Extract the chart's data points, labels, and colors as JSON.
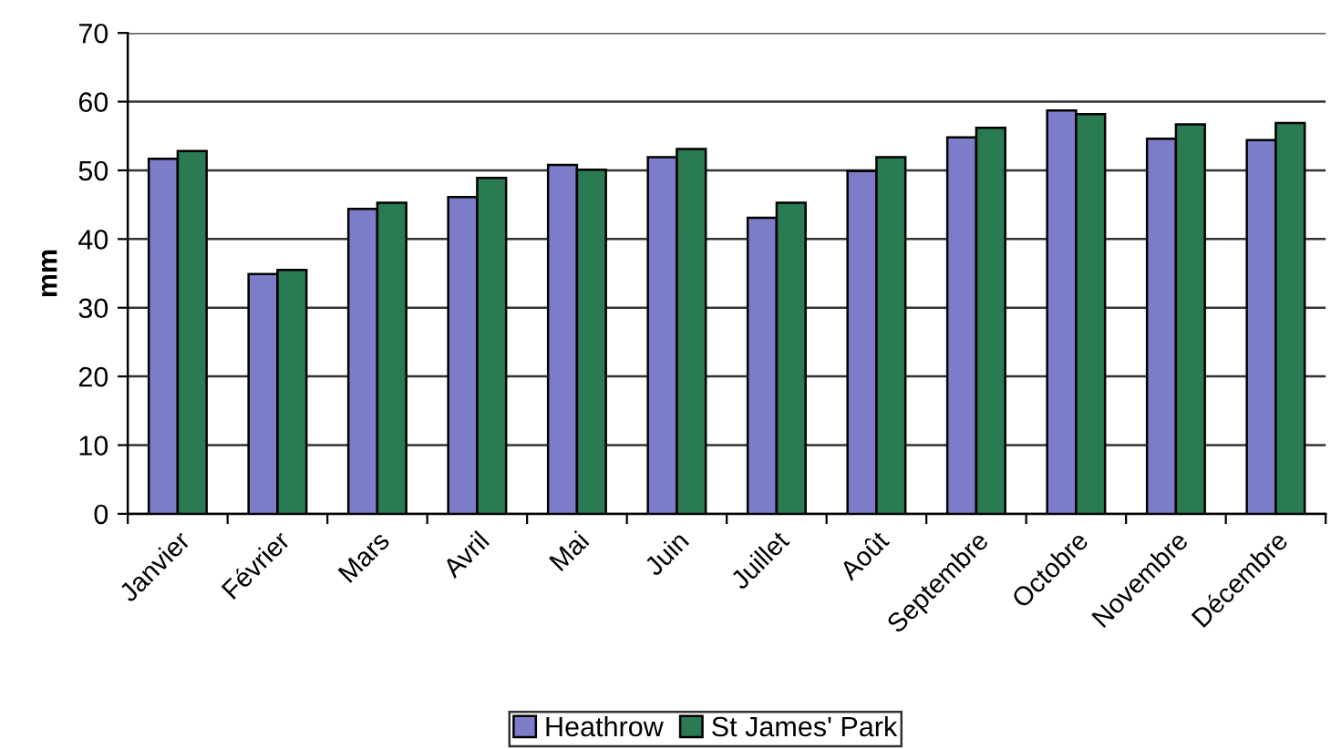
{
  "chart_data": {
    "type": "bar",
    "ylabel": "mm",
    "categories": [
      "Janvier",
      "Février",
      "Mars",
      "Avril",
      "Mai",
      "Juin",
      "Juillet",
      "Août",
      "Septembre",
      "Octobre",
      "Novembre",
      "Décembre"
    ],
    "series": [
      {
        "name": "Heathrow",
        "color": "#7c7cc8",
        "values": [
          51.7,
          34.9,
          44.4,
          46.1,
          50.8,
          51.9,
          43.1,
          49.9,
          54.8,
          58.7,
          54.6,
          54.4
        ]
      },
      {
        "name": "St James' Park",
        "color": "#2a7a52",
        "values": [
          52.8,
          35.5,
          45.3,
          48.9,
          50.1,
          53.1,
          45.3,
          51.9,
          56.2,
          58.2,
          56.7,
          56.9
        ]
      }
    ],
    "ylim": [
      0,
      70
    ],
    "yticks": [
      0,
      10,
      20,
      30,
      40,
      50,
      60,
      70
    ],
    "grid": "y",
    "legend": "bottom"
  }
}
